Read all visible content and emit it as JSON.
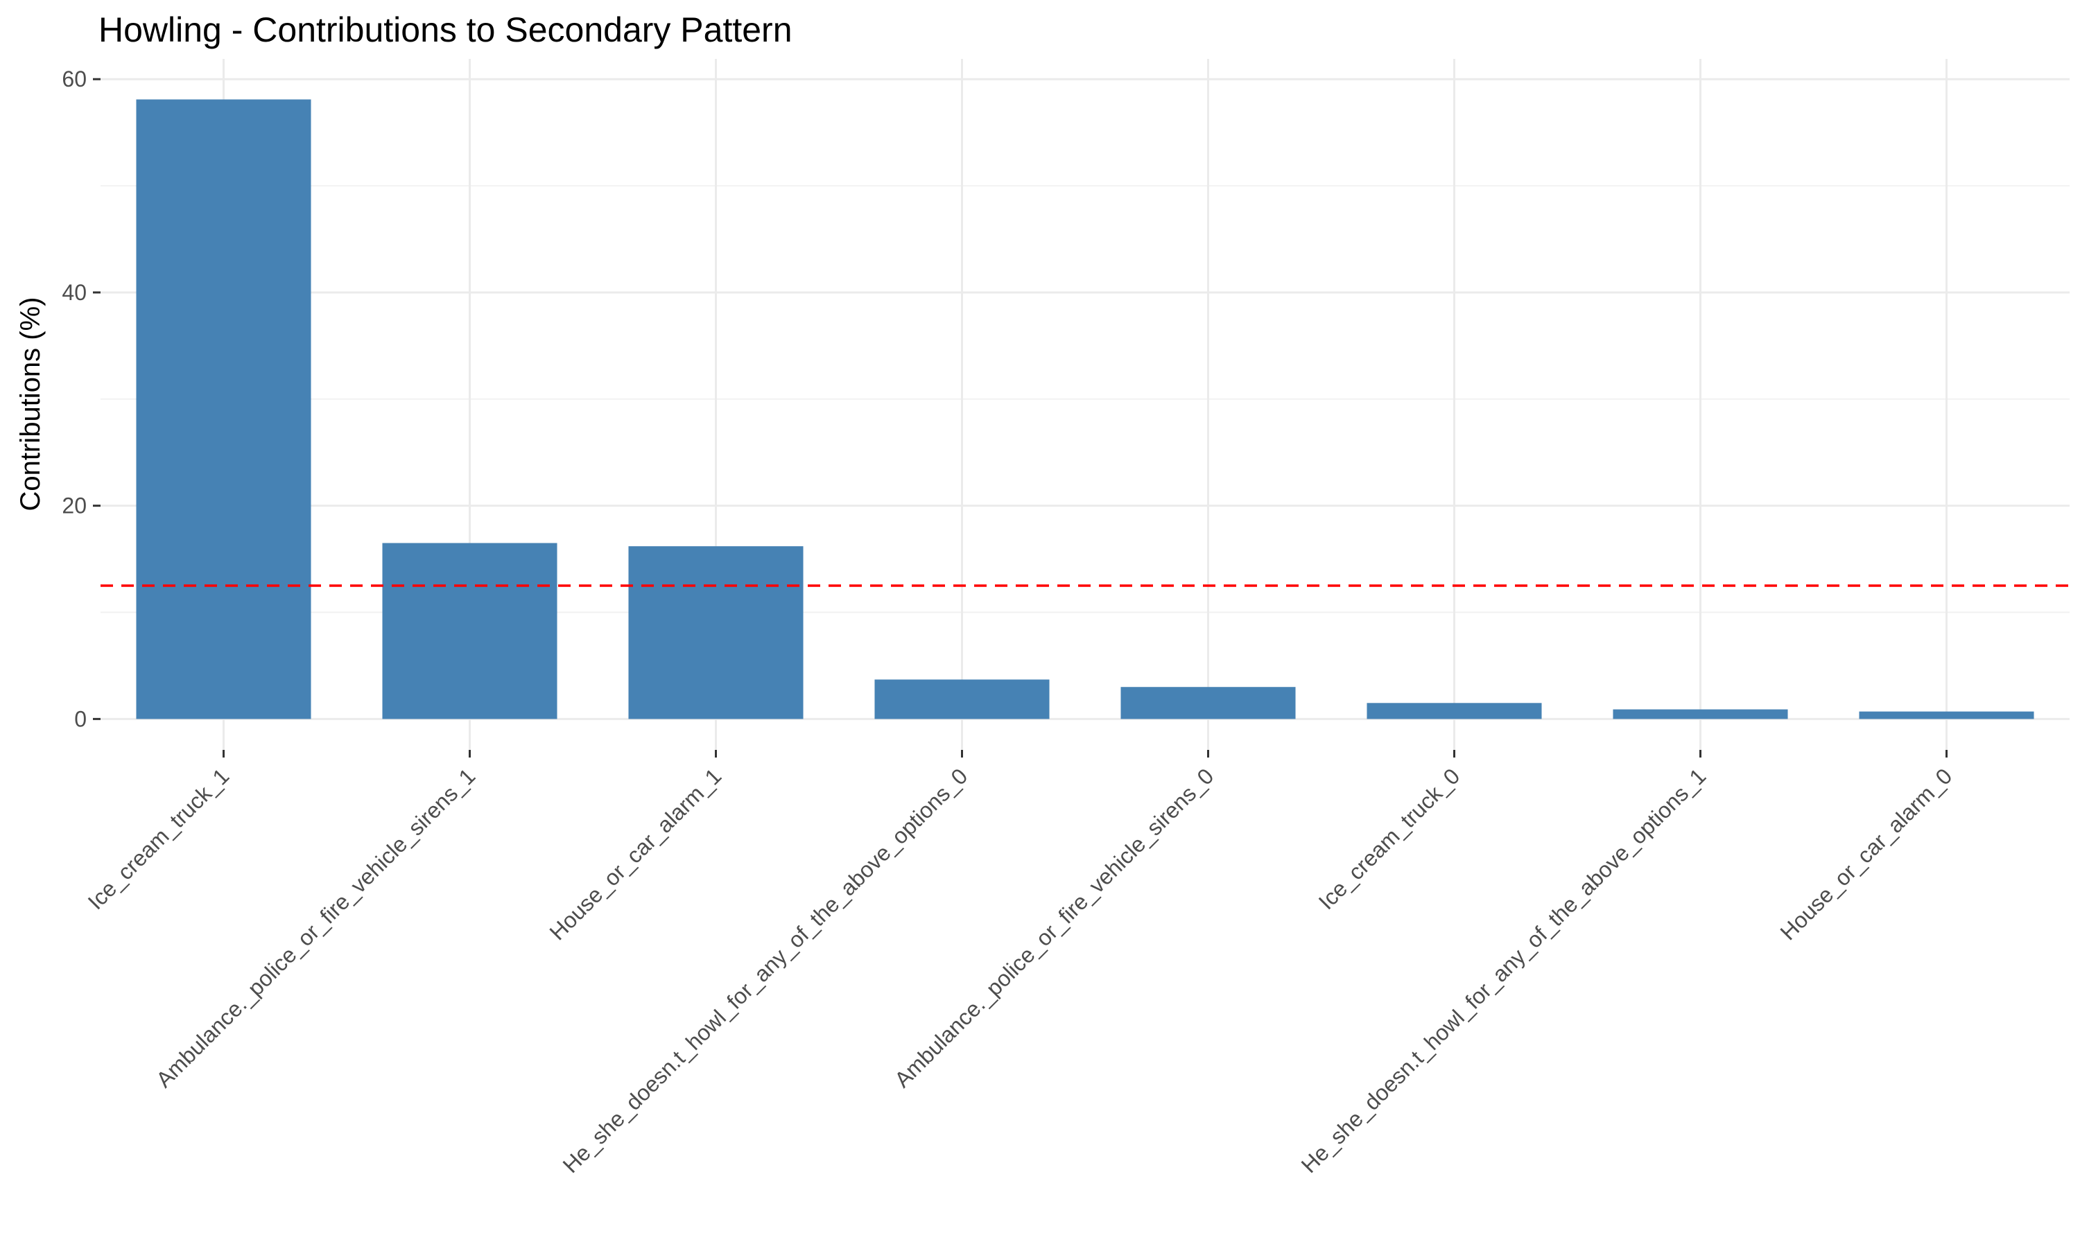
{
  "chart_data": {
    "type": "bar",
    "title": "Howling - Contributions to Secondary Pattern",
    "xlabel": "",
    "ylabel": "Contributions (%)",
    "ylim": [
      -2.9,
      61.9
    ],
    "yticks": [
      0,
      20,
      40,
      60
    ],
    "categories": [
      "Ice_cream_truck_1",
      "Ambulance._police_or_fire_vehicle_sirens_1",
      "House_or_car_alarm_1",
      "He_she_doesn.t_howl_for_any_of_the_above_options_0",
      "Ambulance._police_or_fire_vehicle_sirens_0",
      "Ice_cream_truck_0",
      "He_she_doesn.t_howl_for_any_of_the_above_options_1",
      "House_or_car_alarm_0"
    ],
    "values": [
      58.1,
      16.5,
      16.2,
      3.7,
      3.0,
      1.5,
      0.9,
      0.7
    ],
    "reference_line": {
      "value": 12.5,
      "style": "dashed",
      "color": "#ff0000"
    },
    "bar_color": "#4682b4",
    "grid": true,
    "legend": "none"
  }
}
